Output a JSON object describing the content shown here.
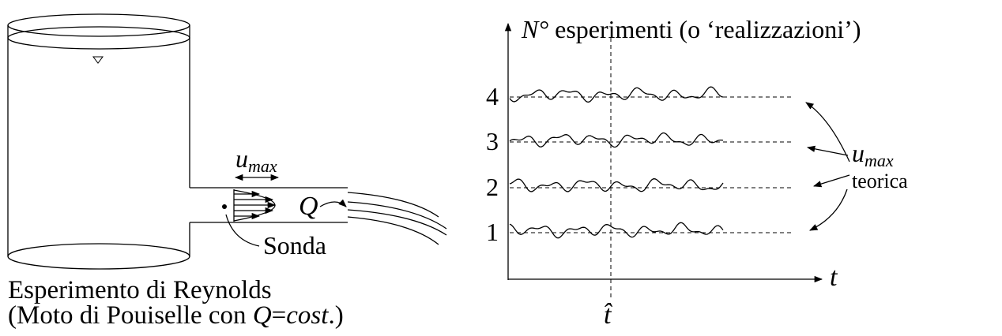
{
  "left_panel": {
    "velocity_label": {
      "base": "u",
      "sub": "max"
    },
    "flow_label": "Q",
    "probe_label": "Sonda",
    "caption_line1": "Esperimento di Reynolds",
    "caption_line2": [
      "(Moto di Pouiselle con ",
      "Q",
      "=",
      "cost",
      ".)"
    ]
  },
  "right_panel": {
    "axis_title_symbol": "N°",
    "axis_title_text": "esperimenti (o ‘realizzazioni’)",
    "realization_labels": [
      "4",
      "3",
      "2",
      "1"
    ],
    "x_axis_label": "t",
    "time_marker_label": "t̂",
    "theory_label": {
      "base": "u",
      "sub": "max"
    },
    "theory_label_line2": "teorica"
  }
}
